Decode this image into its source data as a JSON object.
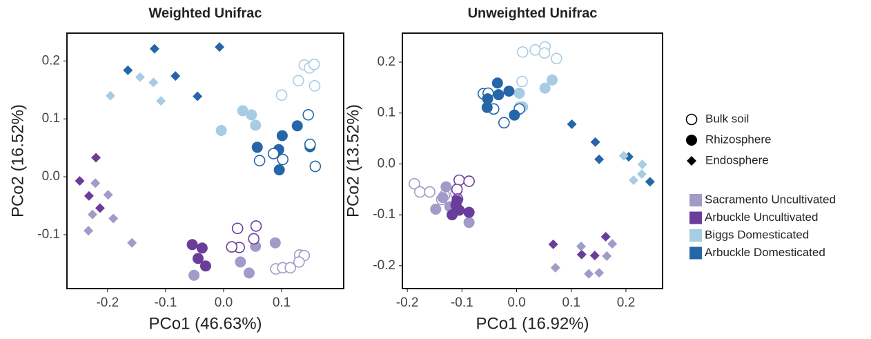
{
  "chart_data": [
    {
      "type": "scatter",
      "title": "Weighted Unifrac",
      "x_label": "PCo1 (46.63%)",
      "y_label": "PCo2 (16.52%)",
      "xlim": [
        -0.27,
        0.207
      ],
      "ylim": [
        -0.193,
        0.248
      ],
      "xticks": [
        -0.2,
        -0.1,
        {
          "value": 0,
          "label": "0.0"
        },
        0.1
      ],
      "yticks": [
        0.2,
        0.1,
        {
          "value": 0,
          "label": "0.0"
        },
        -0.1
      ],
      "series": [
        {
          "group": "Arbuckle Domesticated",
          "compartment": "Endosphere",
          "x": [
            -0.119,
            -0.007,
            -0.165,
            -0.083,
            -0.045
          ],
          "y": [
            0.221,
            0.224,
            0.184,
            0.174,
            0.139
          ]
        },
        {
          "group": "Biggs Domesticated",
          "compartment": "Endosphere",
          "x": [
            -0.195,
            -0.144,
            -0.121,
            -0.108
          ],
          "y": [
            0.14,
            0.172,
            0.163,
            0.131
          ]
        },
        {
          "group": "Biggs Domesticated",
          "compartment": "Rhizosphere",
          "x": [
            -0.004,
            0.033,
            0.048,
            0.055
          ],
          "y": [
            0.08,
            0.114,
            0.107,
            0.089
          ]
        },
        {
          "group": "Biggs Domesticated",
          "compartment": "Bulk soil",
          "x": [
            0.1,
            0.129,
            0.139,
            0.148,
            0.156,
            0.157
          ],
          "y": [
            0.141,
            0.166,
            0.193,
            0.188,
            0.194,
            0.157
          ]
        },
        {
          "group": "Arbuckle Domesticated",
          "compartment": "Rhizosphere",
          "x": [
            0.058,
            0.101,
            0.095,
            0.127,
            0.149,
            0.096
          ],
          "y": [
            0.051,
            0.071,
            0.047,
            0.088,
            0.052,
            0.012
          ]
        },
        {
          "group": "Arbuckle Domesticated",
          "compartment": "Bulk soil",
          "x": [
            0.062,
            0.086,
            0.102,
            0.146,
            0.149,
            0.158
          ],
          "y": [
            0.028,
            0.04,
            0.03,
            0.107,
            0.056,
            0.018
          ]
        },
        {
          "group": "Arbuckle Uncultivated",
          "compartment": "Endosphere",
          "x": [
            -0.22,
            -0.248,
            -0.232,
            -0.213
          ],
          "y": [
            0.033,
            -0.007,
            -0.033,
            -0.054
          ]
        },
        {
          "group": "Sacramento Uncultivated",
          "compartment": "Endosphere",
          "x": [
            -0.221,
            -0.199,
            -0.226,
            -0.19,
            -0.233,
            -0.158
          ],
          "y": [
            -0.011,
            -0.031,
            -0.065,
            -0.072,
            -0.093,
            -0.114
          ]
        },
        {
          "group": "Arbuckle Uncultivated",
          "compartment": "Rhizosphere",
          "x": [
            -0.054,
            -0.037,
            -0.044,
            -0.031
          ],
          "y": [
            -0.117,
            -0.123,
            -0.141,
            -0.154
          ]
        },
        {
          "group": "Sacramento Uncultivated",
          "compartment": "Rhizosphere",
          "x": [
            0.029,
            0.044,
            0.055,
            0.089,
            -0.051
          ],
          "y": [
            -0.147,
            -0.166,
            -0.12,
            -0.114,
            -0.17
          ]
        },
        {
          "group": "Arbuckle Uncultivated",
          "compartment": "Bulk soil",
          "x": [
            0.024,
            0.056,
            0.027,
            0.014,
            0.052
          ],
          "y": [
            -0.089,
            -0.085,
            -0.122,
            -0.121,
            -0.107
          ]
        },
        {
          "group": "Sacramento Uncultivated",
          "compartment": "Bulk soil",
          "x": [
            0.131,
            0.139,
            0.13,
            0.09,
            0.102,
            0.115
          ],
          "y": [
            -0.135,
            -0.136,
            -0.147,
            -0.159,
            -0.157,
            -0.157
          ]
        }
      ]
    },
    {
      "type": "scatter",
      "title": "Unweighted Unifrac",
      "x_label": "PCo1 (16.92%)",
      "y_label": "PCo2 (13.52%)",
      "xlim": [
        -0.209,
        0.267
      ],
      "ylim": [
        -0.245,
        0.257
      ],
      "xticks": [
        -0.2,
        -0.1,
        {
          "value": 0,
          "label": "0.0"
        },
        0.1,
        0.2
      ],
      "yticks": [
        0.2,
        0.1,
        {
          "value": 0,
          "label": "0.0"
        },
        -0.1,
        -0.2
      ],
      "series": [
        {
          "group": "Biggs Domesticated",
          "compartment": "Bulk soil",
          "x": [
            0.011,
            0.034,
            0.052,
            0.051,
            0.073,
            0.01,
            0.006
          ],
          "y": [
            0.22,
            0.224,
            0.23,
            0.218,
            0.207,
            0.162,
            0.112
          ]
        },
        {
          "group": "Biggs Domesticated",
          "compartment": "Rhizosphere",
          "x": [
            0.052,
            0.065,
            0.011,
            0.005
          ],
          "y": [
            0.149,
            0.165,
            0.112,
            0.139
          ]
        },
        {
          "group": "Arbuckle Domesticated",
          "compartment": "Bulk soil",
          "x": [
            -0.061,
            -0.042,
            -0.023,
            0.005,
            -0.052
          ],
          "y": [
            0.138,
            0.108,
            0.081,
            0.108,
            0.139
          ]
        },
        {
          "group": "Arbuckle Domesticated",
          "compartment": "Rhizosphere",
          "x": [
            -0.035,
            -0.014,
            -0.033,
            -0.054,
            -0.004,
            -0.053
          ],
          "y": [
            0.159,
            0.143,
            0.136,
            0.111,
            0.096,
            0.128
          ]
        },
        {
          "group": "Arbuckle Domesticated",
          "compartment": "Endosphere",
          "x": [
            0.101,
            0.144,
            0.151,
            0.205,
            0.244
          ],
          "y": [
            0.078,
            0.043,
            0.009,
            0.014,
            -0.035
          ]
        },
        {
          "group": "Biggs Domesticated",
          "compartment": "Endosphere",
          "x": [
            0.196,
            0.23,
            0.229,
            0.214
          ],
          "y": [
            0.016,
            -0.001,
            -0.02,
            -0.032
          ]
        },
        {
          "group": "Sacramento Uncultivated",
          "compartment": "Bulk soil",
          "x": [
            -0.187,
            -0.177,
            -0.159,
            -0.137,
            -0.132,
            -0.111
          ],
          "y": [
            -0.039,
            -0.055,
            -0.055,
            -0.07,
            -0.062,
            -0.059
          ]
        },
        {
          "group": "Arbuckle Uncultivated",
          "compartment": "Bulk soil",
          "x": [
            -0.105,
            -0.087,
            -0.109,
            -0.108
          ],
          "y": [
            -0.032,
            -0.034,
            -0.05,
            -0.069
          ]
        },
        {
          "group": "Sacramento Uncultivated",
          "compartment": "Rhizosphere",
          "x": [
            -0.129,
            -0.135,
            -0.148,
            -0.087,
            -0.122
          ],
          "y": [
            -0.045,
            -0.066,
            -0.089,
            -0.115,
            -0.084
          ]
        },
        {
          "group": "Arbuckle Uncultivated",
          "compartment": "Rhizosphere",
          "x": [
            -0.111,
            -0.105,
            -0.118,
            -0.087,
            -0.109
          ],
          "y": [
            -0.081,
            -0.091,
            -0.1,
            -0.095,
            -0.072
          ]
        },
        {
          "group": "Arbuckle Uncultivated",
          "compartment": "Endosphere",
          "x": [
            0.067,
            0.119,
            0.143,
            0.163
          ],
          "y": [
            -0.158,
            -0.178,
            -0.18,
            -0.143
          ]
        },
        {
          "group": "Sacramento Uncultivated",
          "compartment": "Endosphere",
          "x": [
            0.071,
            0.118,
            0.132,
            0.151,
            0.165,
            0.175
          ],
          "y": [
            -0.204,
            -0.162,
            -0.216,
            -0.214,
            -0.181,
            -0.157
          ]
        }
      ]
    }
  ],
  "legend": {
    "shapes": [
      {
        "name": "Bulk soil",
        "shape": "open-circle"
      },
      {
        "name": "Rhizosphere",
        "shape": "circle"
      },
      {
        "name": "Endosphere",
        "shape": "diamond"
      }
    ],
    "groups": [
      {
        "name": "Sacramento Uncultivated",
        "color": "#a09bc9"
      },
      {
        "name": "Arbuckle Uncultivated",
        "color": "#6a3d9a"
      },
      {
        "name": "Biggs Domesticated",
        "color": "#a6cde3"
      },
      {
        "name": "Arbuckle Domesticated",
        "color": "#2566a8"
      }
    ]
  }
}
